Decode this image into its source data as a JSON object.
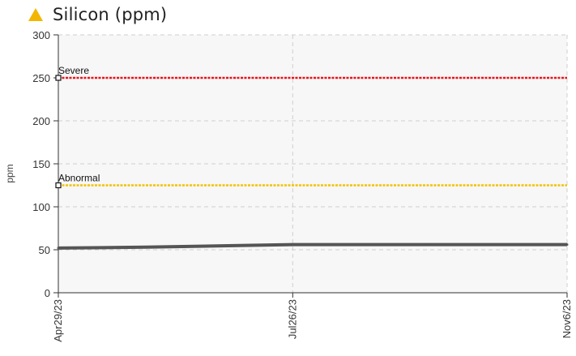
{
  "header": {
    "title": "Silicon (ppm)",
    "icon": "warning-triangle-icon",
    "icon_color": "#f2b600"
  },
  "chart_data": {
    "type": "line",
    "title": "Silicon (ppm)",
    "ylabel": "ppm",
    "xlabel": "",
    "ylim": [
      0,
      300
    ],
    "yticks": [
      0,
      50,
      100,
      150,
      200,
      250,
      300
    ],
    "xticks": [
      "Apr29/23",
      "Jul26/23",
      "Nov6/23"
    ],
    "xlim": [
      "2023-04-29",
      "2023-11-06"
    ],
    "grid": true,
    "thresholds": [
      {
        "label": "Severe",
        "value": 250,
        "color": "#e8141c"
      },
      {
        "label": "Abnormal",
        "value": 125,
        "color": "#f2c200"
      }
    ],
    "series": [
      {
        "color": "#555555",
        "x": [
          "2023-04-29",
          "2023-06-01",
          "2023-07-06",
          "2023-07-26",
          "2023-09-15",
          "2023-11-06"
        ],
        "values": [
          52,
          53,
          55,
          56,
          56,
          56
        ]
      }
    ]
  }
}
